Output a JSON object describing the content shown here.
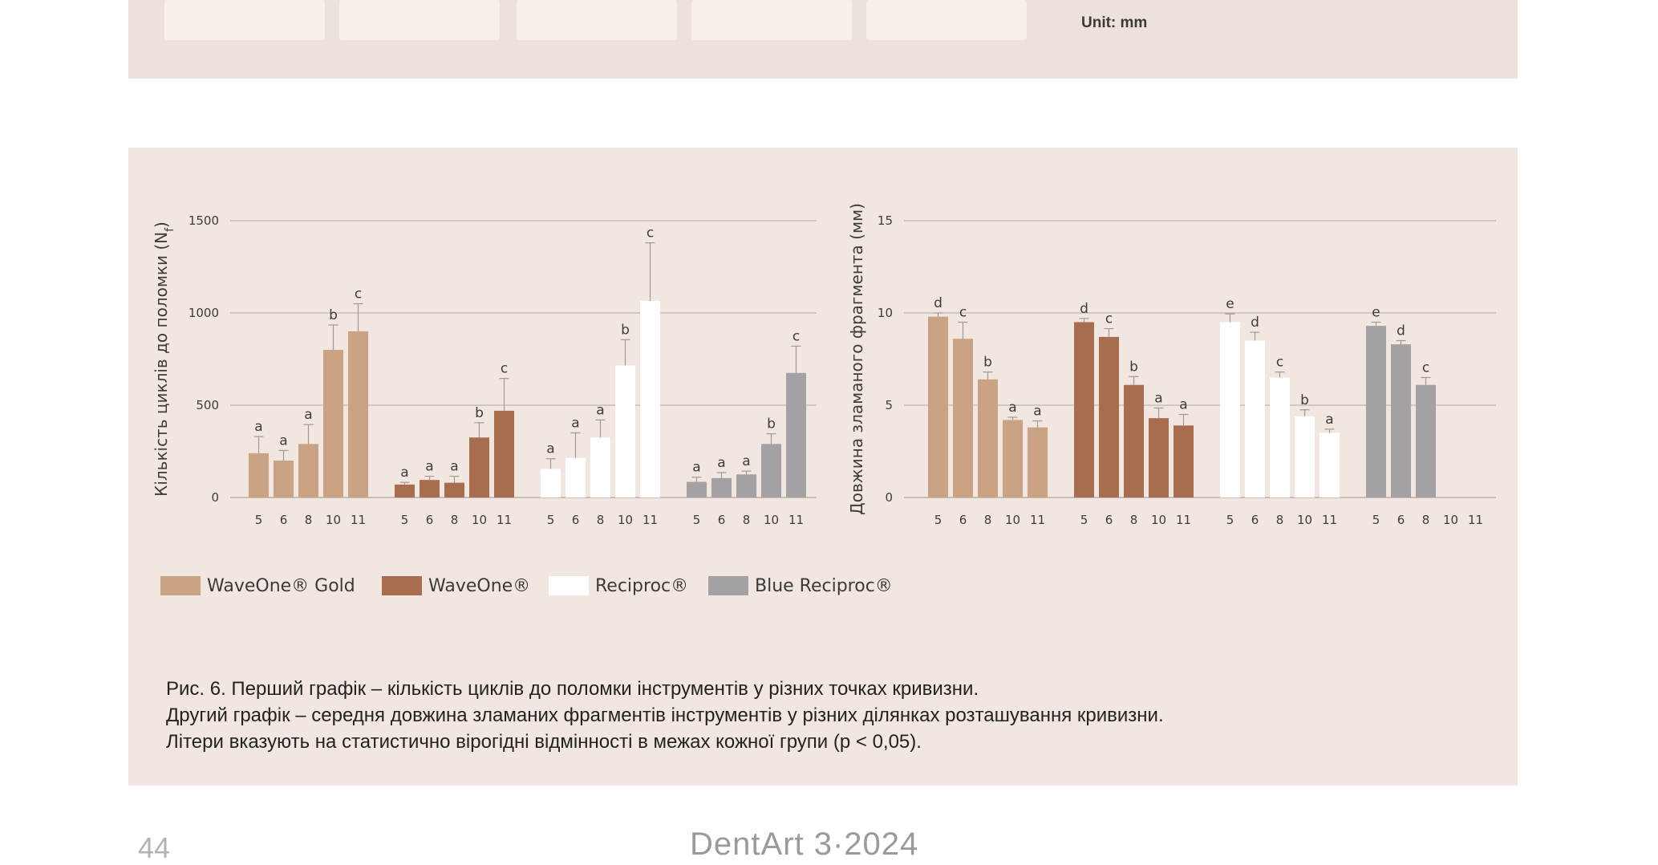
{
  "top_figure": {
    "unit_label": "Unit: mm"
  },
  "colors": {
    "WaveOne Gold": "#caa385",
    "WaveOne": "#a86c4f",
    "Reciproc": "#ffffff",
    "Blue Reciproc": "#a3a1a3",
    "panel_background": "#f1e7e0",
    "gridline": "#b3aaa5"
  },
  "legend": [
    {
      "label": "WaveOne® Gold",
      "color": "#caa385"
    },
    {
      "label": "WaveOne®",
      "color": "#a86c4f"
    },
    {
      "label": "Reciproc®",
      "color": "#ffffff"
    },
    {
      "label": "Blue Reciproc®",
      "color": "#a3a1a3"
    }
  ],
  "chart_data": [
    {
      "type": "bar",
      "ylabel": "Кількість циклів до поломки (Nf)",
      "ylim": [
        0,
        1500
      ],
      "yticks": [
        0,
        500,
        1000,
        1500
      ],
      "categories": [
        "5",
        "6",
        "8",
        "10",
        "11"
      ],
      "grid": true,
      "series": [
        {
          "name": "WaveOne® Gold",
          "values": [
            240,
            200,
            290,
            800,
            900
          ],
          "errors": [
            90,
            55,
            105,
            135,
            150
          ],
          "letters": [
            "a",
            "a",
            "a",
            "b",
            "c"
          ]
        },
        {
          "name": "WaveOne®",
          "values": [
            70,
            95,
            80,
            325,
            470
          ],
          "errors": [
            12,
            20,
            35,
            80,
            175
          ],
          "letters": [
            "a",
            "a",
            "a",
            "b",
            "c"
          ]
        },
        {
          "name": "Reciproc®",
          "values": [
            155,
            215,
            325,
            715,
            1065
          ],
          "errors": [
            55,
            135,
            95,
            140,
            315
          ],
          "letters": [
            "a",
            "a",
            "a",
            "b",
            "c"
          ]
        },
        {
          "name": "Blue Reciproc®",
          "values": [
            85,
            105,
            125,
            290,
            675
          ],
          "errors": [
            25,
            30,
            18,
            55,
            145
          ],
          "letters": [
            "a",
            "a",
            "a",
            "b",
            "c"
          ]
        }
      ]
    },
    {
      "type": "bar",
      "ylabel": "Довжина зламаного фрагмента (мм)",
      "ylim": [
        0,
        15
      ],
      "yticks": [
        0,
        5,
        10,
        15
      ],
      "categories": [
        "5",
        "6",
        "8",
        "10",
        "11"
      ],
      "grid": true,
      "series": [
        {
          "name": "WaveOne® Gold",
          "values": [
            9.8,
            8.6,
            6.4,
            4.2,
            3.8
          ],
          "errors": [
            0.2,
            0.9,
            0.4,
            0.15,
            0.35
          ],
          "letters": [
            "d",
            "c",
            "b",
            "a",
            "a"
          ]
        },
        {
          "name": "WaveOne®",
          "values": [
            9.5,
            8.7,
            6.1,
            4.3,
            3.9
          ],
          "errors": [
            0.2,
            0.45,
            0.45,
            0.55,
            0.6
          ],
          "letters": [
            "d",
            "c",
            "b",
            "a",
            "a"
          ]
        },
        {
          "name": "Reciproc®",
          "values": [
            9.5,
            8.5,
            6.5,
            4.4,
            3.5
          ],
          "errors": [
            0.45,
            0.45,
            0.3,
            0.35,
            0.2
          ],
          "letters": [
            "e",
            "d",
            "c",
            "b",
            "a"
          ]
        },
        {
          "name": "Blue Reciproc®",
          "values": [
            9.3,
            8.3,
            6.1,
            null,
            null
          ],
          "errors": [
            0.2,
            0.2,
            0.4,
            null,
            null
          ],
          "letters": [
            "e",
            "d",
            "c",
            "",
            ""
          ]
        }
      ]
    }
  ],
  "caption": {
    "line1": "Рис. 6. Перший графік – кількість циклів до поломки інструментів у різних точках кривизни.",
    "line2": "Другий графік – середня довжина зламаних фрагментів інструментів у різних ділянках розташування кривизни.",
    "line3": "Літери вказують на статистично вірогідні відмінності в межах кожної групи (p < 0,05)."
  },
  "footer": {
    "page_number": "44",
    "journal": "DentArt 3·2024"
  }
}
